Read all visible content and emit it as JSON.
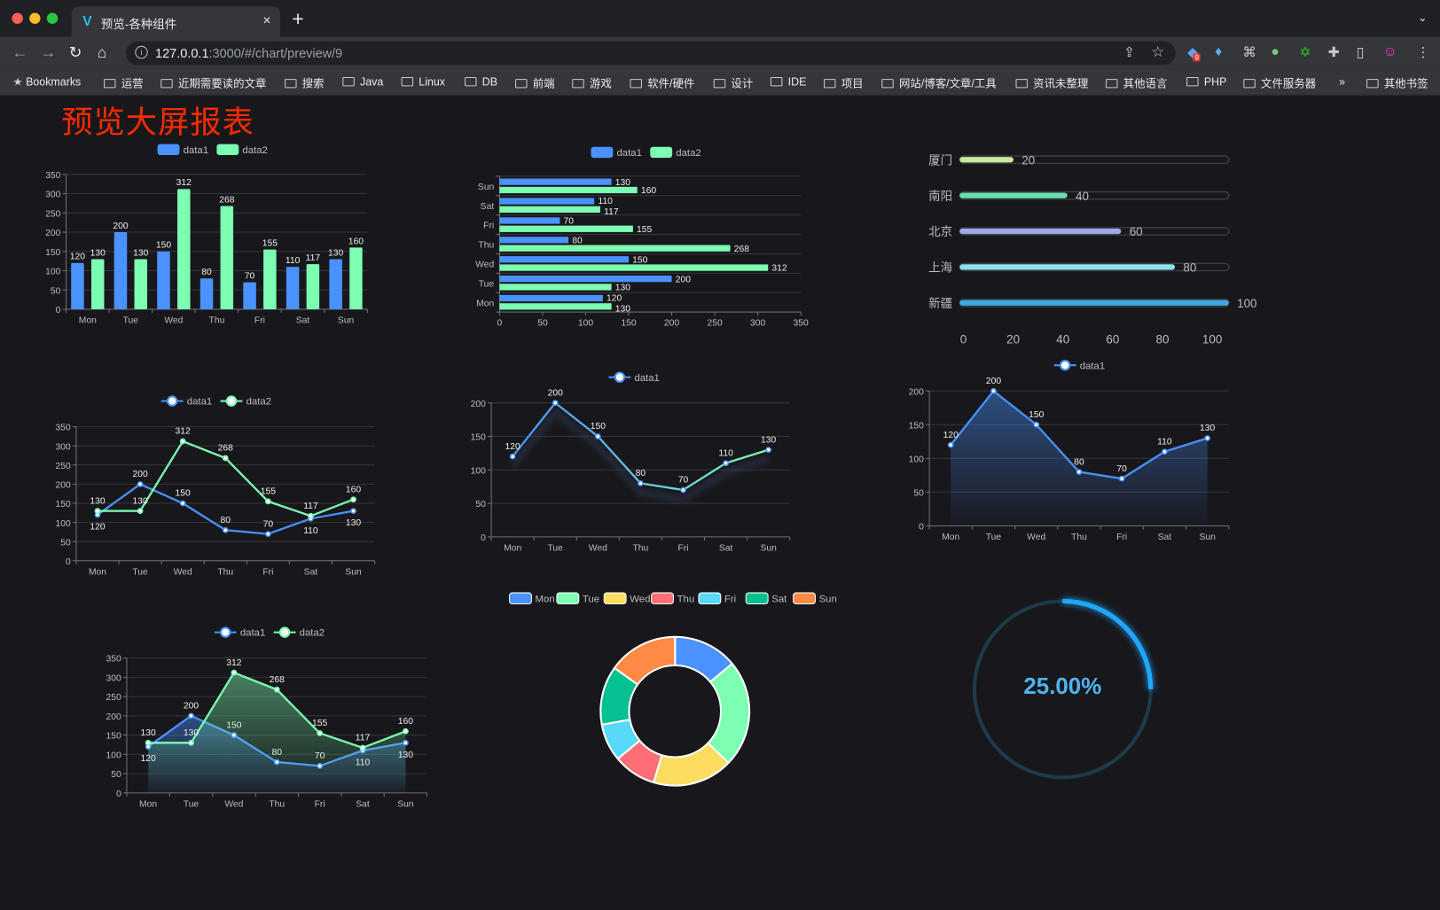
{
  "browser": {
    "tab_title": "预览-各种组件",
    "tab_close": "×",
    "new_tab": "+",
    "tab_menu": "⌄",
    "url_host": "127.0.0.1",
    "url_rest": ":3000/#/chart/preview/9",
    "extension_badge": "9",
    "bookmarks": [
      "Bookmarks",
      "运营",
      "近期需要读的文章",
      "搜索",
      "Java",
      "Linux",
      "DB",
      "前端",
      "游戏",
      "软件/硬件",
      "设计",
      "IDE",
      "项目",
      "网站/博客/文章/工具",
      "资讯未整理",
      "其他语言",
      "PHP",
      "文件服务器"
    ],
    "more": "»",
    "other_bookmarks": "其他书签"
  },
  "page": {
    "title": "预览大屏报表",
    "gauge_text": "25.00%"
  },
  "colors": {
    "data1": "#4992ff",
    "data2": "#7cffb2",
    "title": "#ff2a00",
    "gauge": "#1fa7ff"
  },
  "chart_data": [
    {
      "type": "bar",
      "categories": [
        "Mon",
        "Tue",
        "Wed",
        "Thu",
        "Fri",
        "Sat",
        "Sun"
      ],
      "ylim": [
        0,
        350
      ],
      "grid": true,
      "legend": "top",
      "series": [
        {
          "name": "data1",
          "values": [
            120,
            200,
            150,
            80,
            70,
            110,
            130
          ]
        },
        {
          "name": "data2",
          "values": [
            130,
            130,
            312,
            268,
            155,
            117,
            160
          ]
        }
      ]
    },
    {
      "type": "bar",
      "orientation": "horizontal",
      "categories": [
        "Mon",
        "Tue",
        "Wed",
        "Thu",
        "Fri",
        "Sat",
        "Sun"
      ],
      "xlim": [
        0,
        350
      ],
      "grid": true,
      "legend": "top",
      "series": [
        {
          "name": "data1",
          "values": [
            120,
            200,
            150,
            80,
            70,
            110,
            130
          ]
        },
        {
          "name": "data2",
          "values": [
            130,
            130,
            312,
            268,
            155,
            117,
            160
          ]
        }
      ]
    },
    {
      "type": "bar",
      "orientation": "horizontal",
      "categories": [
        "厦门",
        "南阳",
        "北京",
        "上海",
        "新疆"
      ],
      "values": [
        20,
        40,
        60,
        80,
        100
      ],
      "xlim": [
        0,
        100
      ],
      "xticks": [
        0,
        20,
        40,
        60,
        80,
        100
      ],
      "colors": [
        "#c5ec9e",
        "#63e0b0",
        "#9fa8e8",
        "#8fe0ea",
        "#3ba9dd"
      ]
    },
    {
      "type": "line",
      "categories": [
        "Mon",
        "Tue",
        "Wed",
        "Thu",
        "Fri",
        "Sat",
        "Sun"
      ],
      "ylim": [
        0,
        350
      ],
      "grid": true,
      "legend": "top",
      "series": [
        {
          "name": "data1",
          "values": [
            120,
            200,
            150,
            80,
            70,
            110,
            130
          ]
        },
        {
          "name": "data2",
          "values": [
            130,
            130,
            312,
            268,
            155,
            117,
            160
          ]
        }
      ]
    },
    {
      "type": "line",
      "categories": [
        "Mon",
        "Tue",
        "Wed",
        "Thu",
        "Fri",
        "Sat",
        "Sun"
      ],
      "ylim": [
        0,
        200
      ],
      "grid": true,
      "legend": "top",
      "series": [
        {
          "name": "data1",
          "values": [
            120,
            200,
            150,
            80,
            70,
            110,
            130
          ]
        }
      ]
    },
    {
      "type": "area",
      "categories": [
        "Mon",
        "Tue",
        "Wed",
        "Thu",
        "Fri",
        "Sat",
        "Sun"
      ],
      "ylim": [
        0,
        200
      ],
      "grid": true,
      "legend": "top",
      "series": [
        {
          "name": "data1",
          "values": [
            120,
            200,
            150,
            80,
            70,
            110,
            130
          ]
        }
      ]
    },
    {
      "type": "area",
      "categories": [
        "Mon",
        "Tue",
        "Wed",
        "Thu",
        "Fri",
        "Sat",
        "Sun"
      ],
      "ylim": [
        0,
        350
      ],
      "grid": true,
      "legend": "top",
      "series": [
        {
          "name": "data1",
          "values": [
            120,
            200,
            150,
            80,
            70,
            110,
            130
          ]
        },
        {
          "name": "data2",
          "values": [
            130,
            130,
            312,
            268,
            155,
            117,
            160
          ]
        }
      ]
    },
    {
      "type": "pie",
      "donut": true,
      "legend": "top",
      "categories": [
        "Mon",
        "Tue",
        "Wed",
        "Thu",
        "Fri",
        "Sat",
        "Sun"
      ],
      "values": [
        120,
        200,
        150,
        80,
        70,
        110,
        130
      ],
      "colors": [
        "#4992ff",
        "#7cffb2",
        "#fddd60",
        "#ff6e76",
        "#58d9f9",
        "#05c091",
        "#ff8a45"
      ]
    },
    {
      "type": "gauge",
      "value": 25,
      "label": "25.00%"
    }
  ]
}
